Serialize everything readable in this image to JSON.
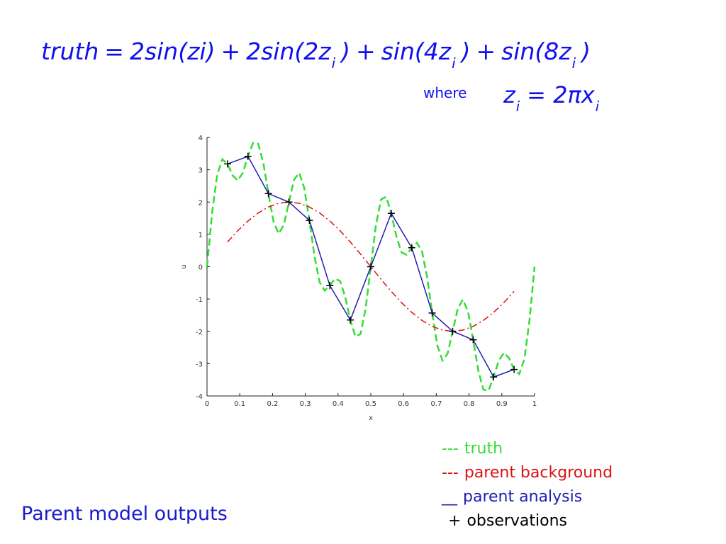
{
  "equation": {
    "tokens": [
      {
        "t": "truth"
      },
      {
        "t": "="
      },
      {
        "t": "2sin(zi)"
      },
      {
        "t": "+"
      },
      {
        "t": "2sin(2z",
        "sub": "i"
      },
      {
        "t": ")"
      },
      {
        "t": "+"
      },
      {
        "t": "sin(4z",
        "sub": "i"
      },
      {
        "t": ")"
      },
      {
        "t": "+"
      },
      {
        "t": "sin(8z",
        "sub": "i"
      },
      {
        "t": ")"
      }
    ]
  },
  "where": {
    "label": "where",
    "tokens": [
      {
        "t": "z",
        "sub": "i"
      },
      {
        "t": "= 2πx",
        "sub": "i"
      }
    ]
  },
  "chart_data": {
    "type": "line",
    "xlabel": "x",
    "ylabel": "u",
    "xlim": [
      0,
      1
    ],
    "ylim": [
      -4,
      4
    ],
    "xticks": [
      0,
      0.1,
      0.2,
      0.3,
      0.4,
      0.5,
      0.6,
      0.7,
      0.8,
      0.9,
      1
    ],
    "yticks": [
      -4,
      -3,
      -2,
      -1,
      0,
      1,
      2,
      3,
      4
    ],
    "series": [
      {
        "name": "truth",
        "legend_marker": "---",
        "color": "#33dd33",
        "line_style": "dashed",
        "x": [
          0,
          0.015625,
          0.03125,
          0.046875,
          0.0625,
          0.078125,
          0.09375,
          0.109375,
          0.125,
          0.140625,
          0.15625,
          0.171875,
          0.1875,
          0.203125,
          0.21875,
          0.234375,
          0.25,
          0.265625,
          0.28125,
          0.296875,
          0.3125,
          0.328125,
          0.34375,
          0.359375,
          0.375,
          0.390625,
          0.40625,
          0.421875,
          0.4375,
          0.453125,
          0.46875,
          0.484375,
          0.5,
          0.515625,
          0.53125,
          0.546875,
          0.5625,
          0.578125,
          0.59375,
          0.609375,
          0.625,
          0.640625,
          0.65625,
          0.671875,
          0.6875,
          0.703125,
          0.71875,
          0.734375,
          0.75,
          0.765625,
          0.78125,
          0.796875,
          0.8125,
          0.828125,
          0.84375,
          0.859375,
          0.875,
          0.890625,
          0.90625,
          0.921875,
          0.9375,
          0.953125,
          0.96875,
          0.984375,
          1
        ],
        "values": [
          0,
          1.676,
          2.863,
          3.323,
          3.18,
          2.823,
          2.666,
          2.906,
          3.414,
          3.832,
          3.804,
          3.21,
          2.262,
          1.394,
          1.02,
          1.291,
          2,
          2.69,
          2.903,
          2.434,
          1.434,
          0.318,
          -0.478,
          -0.74,
          -0.586,
          -0.368,
          -0.444,
          -0.937,
          -1.649,
          -2.162,
          -2.082,
          -1.284,
          0,
          1.284,
          2.082,
          2.162,
          1.649,
          0.937,
          0.444,
          0.368,
          0.586,
          0.74,
          0.478,
          -0.318,
          -1.434,
          -2.434,
          -2.903,
          -2.69,
          -2,
          -1.291,
          -1.02,
          -1.394,
          -2.262,
          -3.21,
          -3.804,
          -3.832,
          -3.414,
          -2.906,
          -2.666,
          -2.823,
          -3.18,
          -3.323,
          -2.863,
          -1.676,
          0
        ]
      },
      {
        "name": "parent background",
        "legend_marker": "---",
        "color": "#dd1111",
        "line_style": "dashdot",
        "x": [
          0.0625,
          0.09375,
          0.125,
          0.15625,
          0.1875,
          0.21875,
          0.25,
          0.28125,
          0.3125,
          0.34375,
          0.375,
          0.40625,
          0.4375,
          0.46875,
          0.5,
          0.53125,
          0.5625,
          0.59375,
          0.625,
          0.65625,
          0.6875,
          0.71875,
          0.75,
          0.78125,
          0.8125,
          0.84375,
          0.875,
          0.90625,
          0.9375
        ],
        "values": [
          0.765,
          1.111,
          1.414,
          1.663,
          1.848,
          1.962,
          2,
          1.962,
          1.848,
          1.663,
          1.414,
          1.111,
          0.765,
          0.39,
          0,
          -0.39,
          -0.765,
          -1.111,
          -1.414,
          -1.663,
          -1.848,
          -1.962,
          -2,
          -1.962,
          -1.848,
          -1.663,
          -1.414,
          -1.111,
          -0.765
        ]
      },
      {
        "name": "parent analysis",
        "legend_marker": "__",
        "color": "#1f1fb0",
        "line_style": "solid",
        "x": [
          0.0625,
          0.125,
          0.1875,
          0.25,
          0.3125,
          0.375,
          0.4375,
          0.5,
          0.5625,
          0.625,
          0.6875,
          0.75,
          0.8125,
          0.875,
          0.9375
        ],
        "values": [
          3.18,
          3.414,
          2.262,
          2,
          1.434,
          -0.586,
          -1.649,
          0,
          1.649,
          0.586,
          -1.434,
          -2,
          -2.262,
          -3.414,
          -3.18
        ]
      },
      {
        "name": "observations",
        "legend_marker": "+",
        "color": "#000000",
        "line_style": "none",
        "marker": "plus",
        "x": [
          0.0625,
          0.125,
          0.1875,
          0.25,
          0.3125,
          0.375,
          0.4375,
          0.5,
          0.5625,
          0.625,
          0.6875,
          0.75,
          0.8125,
          0.875,
          0.9375
        ],
        "values": [
          3.18,
          3.414,
          2.262,
          2,
          1.434,
          -0.586,
          -1.649,
          0,
          1.649,
          0.586,
          -1.434,
          -2,
          -2.262,
          -3.414,
          -3.18
        ]
      }
    ]
  },
  "caption": "Parent model outputs"
}
